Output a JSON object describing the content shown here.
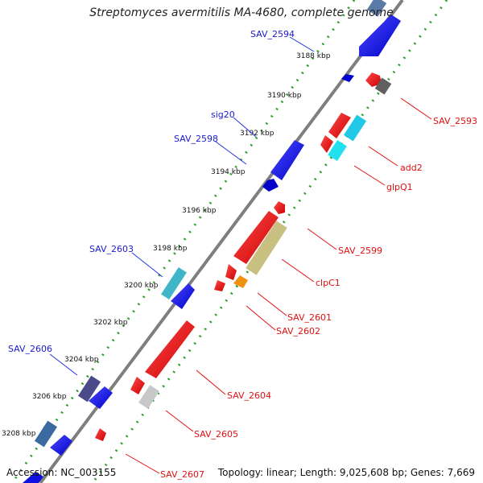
{
  "title": "Streptomyces avermitilis MA-4680, complete genome",
  "accession": "Accession: NC_003155",
  "summary": "Topology: linear; Length: 9,025,608 bp; Genes: 7,669",
  "ticks": [
    "3188 kbp",
    "3190 kbp",
    "3192 kbp",
    "3194 kbp",
    "3196 kbp",
    "3198 kbp",
    "3200 kbp",
    "3202 kbp",
    "3204 kbp",
    "3206 kbp",
    "3208 kbp"
  ],
  "forward_labels": [
    "SAV_2594",
    "sig20",
    "SAV_2598",
    "SAV_2603",
    "SAV_2606"
  ],
  "reverse_labels": [
    "SAV_2593",
    "add2",
    "glpQ1",
    "SAV_2599",
    "clpC1",
    "SAV_2601",
    "SAV_2602",
    "SAV_2604",
    "SAV_2605",
    "SAV_2607"
  ],
  "colors": {
    "backbone": "#7f7f7f",
    "forward_track": "#2aa02a",
    "reverse_track": "#2aa02a",
    "forward_label": "#1a1ad0",
    "reverse_label": "#e01010",
    "forward_gene": "#1010e0",
    "reverse_gene": "#e81010",
    "tick_text": "#111111"
  }
}
